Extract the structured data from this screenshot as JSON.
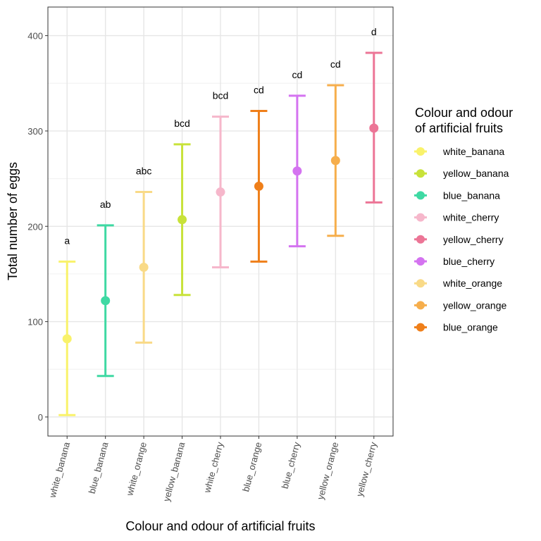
{
  "chart_data": {
    "type": "errorbar",
    "xlabel": "Colour and odour of artificial fruits",
    "ylabel": "Total number of eggs",
    "ylim": [
      -20,
      430
    ],
    "yticks": [
      0,
      100,
      200,
      300,
      400
    ],
    "yminor": [
      50,
      150,
      250,
      350
    ],
    "grid": true,
    "categories": [
      "white_banana",
      "blue_banana",
      "white_orange",
      "yellow_banana",
      "white_cherry",
      "blue_orange",
      "blue_cherry",
      "yellow_orange",
      "yellow_cherry"
    ],
    "points": [
      {
        "category": "white_banana",
        "mean": 82,
        "lower": 2,
        "upper": 163,
        "letter": "a",
        "color": "#F9F26A"
      },
      {
        "category": "blue_banana",
        "mean": 122,
        "lower": 43,
        "upper": 201,
        "letter": "ab",
        "color": "#3FD9A3"
      },
      {
        "category": "white_orange",
        "mean": 157,
        "lower": 78,
        "upper": 236,
        "letter": "abc",
        "color": "#F9DA87"
      },
      {
        "category": "yellow_banana",
        "mean": 207,
        "lower": 128,
        "upper": 286,
        "letter": "bcd",
        "color": "#C8E23A"
      },
      {
        "category": "white_cherry",
        "mean": 236,
        "lower": 157,
        "upper": 315,
        "letter": "bcd",
        "color": "#F6B7CB"
      },
      {
        "category": "blue_orange",
        "mean": 242,
        "lower": 163,
        "upper": 321,
        "letter": "cd",
        "color": "#EF7F1A"
      },
      {
        "category": "blue_cherry",
        "mean": 258,
        "lower": 179,
        "upper": 337,
        "letter": "cd",
        "color": "#D473F0"
      },
      {
        "category": "yellow_orange",
        "mean": 269,
        "lower": 190,
        "upper": 348,
        "letter": "cd",
        "color": "#F6AE4C"
      },
      {
        "category": "yellow_cherry",
        "mean": 303,
        "lower": 225,
        "upper": 382,
        "letter": "d",
        "color": "#EC7596"
      }
    ],
    "legend": {
      "title_line1": "Colour and odour",
      "title_line2": "of artificial fruits",
      "position": "right",
      "items": [
        {
          "label": "white_banana",
          "color": "#F9F26A"
        },
        {
          "label": "yellow_banana",
          "color": "#C8E23A"
        },
        {
          "label": "blue_banana",
          "color": "#3FD9A3"
        },
        {
          "label": "white_cherry",
          "color": "#F6B7CB"
        },
        {
          "label": "yellow_cherry",
          "color": "#EC7596"
        },
        {
          "label": "blue_cherry",
          "color": "#D473F0"
        },
        {
          "label": "white_orange",
          "color": "#F9DA87"
        },
        {
          "label": "yellow_orange",
          "color": "#F6AE4C"
        },
        {
          "label": "blue_orange",
          "color": "#EF7F1A"
        }
      ]
    }
  }
}
